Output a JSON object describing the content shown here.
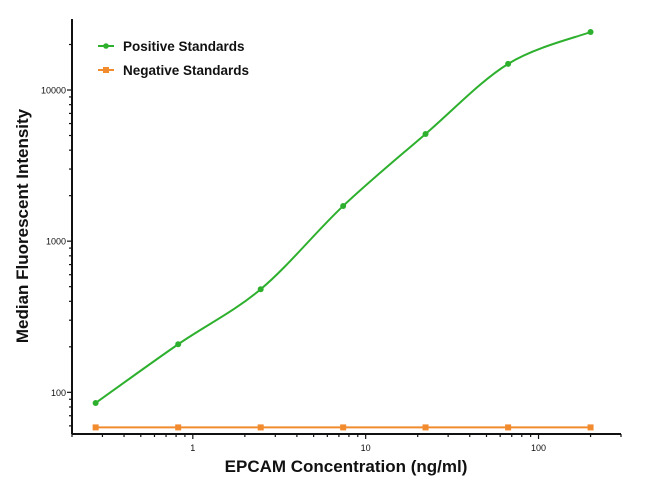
{
  "chart_data": {
    "type": "line",
    "title": "",
    "xlabel": "EPCAM Concentration (ng/ml)",
    "ylabel": "Median Fluorescent Intensity",
    "xscale": "log",
    "yscale": "log",
    "xlim": [
      0.2,
      300
    ],
    "ylim": [
      53,
      29500
    ],
    "xticks": [
      1,
      10,
      100
    ],
    "xtick_labels": [
      "1",
      "10",
      "100"
    ],
    "yticks": [
      100,
      1000,
      10000
    ],
    "ytick_labels": [
      "100",
      "1000",
      "10000"
    ],
    "grid": false,
    "legend_position": "top-left",
    "series": [
      {
        "name": "Positive Standards",
        "color": "#2db02d",
        "marker": "circle",
        "fit": "smooth curve",
        "x": [
          0.274,
          0.823,
          2.47,
          7.41,
          22.2,
          66.7,
          200
        ],
        "y": [
          85,
          208,
          481,
          1710,
          5120,
          14900,
          24200
        ]
      },
      {
        "name": "Negative Standards",
        "color": "#f28a2e",
        "marker": "square",
        "fit": "line",
        "x": [
          0.274,
          0.823,
          2.47,
          7.41,
          22.2,
          66.7,
          200
        ],
        "y": [
          58.6,
          58.6,
          58.6,
          58.6,
          58.6,
          58.6,
          58.6
        ]
      }
    ]
  }
}
